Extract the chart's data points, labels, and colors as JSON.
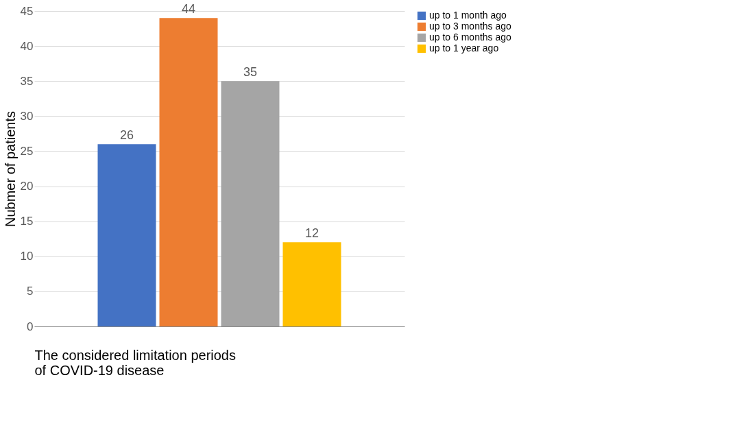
{
  "chart_data": {
    "type": "bar",
    "xlabel": "The considered limitation periods\nof COVID-19 disease",
    "ylabel": "Nubmer of patients",
    "categories": [
      null
    ],
    "series": [
      {
        "name": "up to 1 month ago",
        "color": "#4472c4",
        "values": [
          26
        ]
      },
      {
        "name": "up to 3 months ago",
        "color": "#ed7d31",
        "values": [
          44
        ]
      },
      {
        "name": "up to 6 months ago",
        "color": "#a5a5a5",
        "values": [
          35
        ]
      },
      {
        "name": "up to 1 year ago",
        "color": "#ffc000",
        "values": [
          12
        ]
      }
    ],
    "ylim": [
      0,
      45
    ],
    "yticks": [
      0,
      5,
      10,
      15,
      20,
      25,
      30,
      35,
      40,
      45
    ],
    "grid": "y",
    "legend": "right",
    "data_labels": true
  }
}
